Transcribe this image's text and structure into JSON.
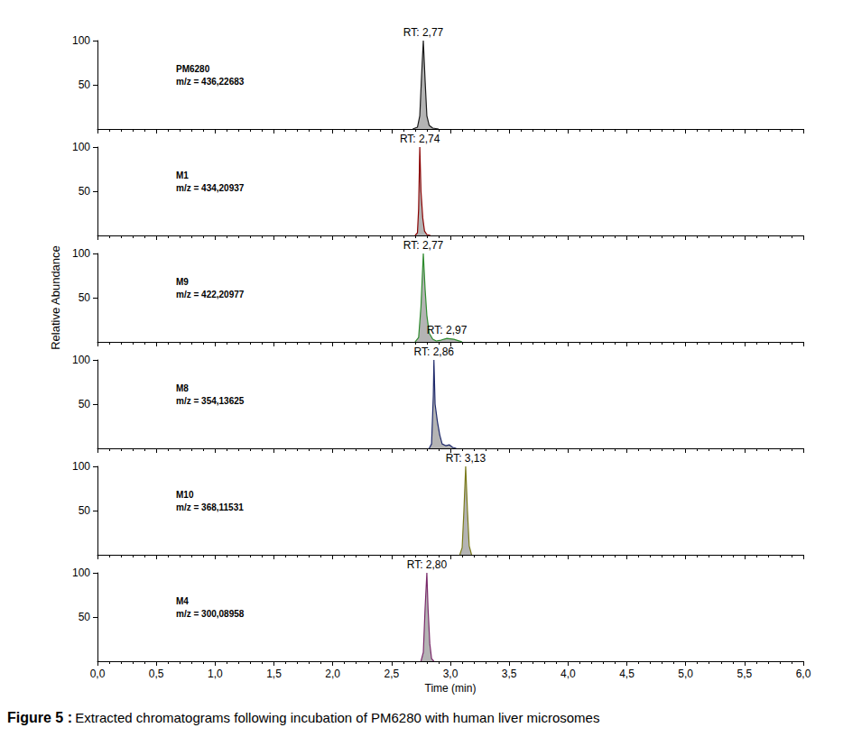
{
  "chart_data": [
    {
      "type": "line",
      "title": "PM6280",
      "subtitle": "m/z = 436,22683",
      "color": "#1a1a1a",
      "x": [
        2.68,
        2.72,
        2.74,
        2.755,
        2.77,
        2.785,
        2.8,
        2.82,
        2.85,
        2.9
      ],
      "values": [
        0,
        2,
        15,
        60,
        100,
        55,
        15,
        4,
        1,
        0
      ],
      "annotations": [
        {
          "text": "RT: 2,77",
          "x": 2.77,
          "y": 100
        }
      ],
      "xlim": [
        0,
        6
      ],
      "ylim": [
        0,
        100
      ],
      "yticks": [
        50,
        100
      ],
      "tick_labels": "y",
      "xticks": [
        {
          "value": 0,
          "label": "0,0"
        },
        {
          "value": 0.5,
          "label": "0,5"
        },
        {
          "value": 1,
          "label": "1,0"
        },
        {
          "value": 1.5,
          "label": "1,5"
        },
        {
          "value": 2,
          "label": "2,0"
        },
        {
          "value": 2.5,
          "label": "2,5"
        },
        {
          "value": 3,
          "label": "3,0"
        },
        {
          "value": 3.5,
          "label": "3,5"
        },
        {
          "value": 4,
          "label": "4,0"
        },
        {
          "value": 4.5,
          "label": "4,5"
        },
        {
          "value": 5,
          "label": "5,0"
        },
        {
          "value": 5.5,
          "label": "5,5"
        },
        {
          "value": 6,
          "label": "6,0"
        }
      ]
    },
    {
      "type": "line",
      "title": "M1",
      "subtitle": "m/z = 434,20937",
      "color": "#8b0000",
      "x": [
        2.7,
        2.72,
        2.73,
        2.74,
        2.75,
        2.765,
        2.78,
        2.8,
        2.83
      ],
      "values": [
        0,
        3,
        30,
        100,
        50,
        20,
        5,
        1,
        0
      ],
      "annotations": [
        {
          "text": "RT: 2,74",
          "x": 2.74,
          "y": 100
        }
      ],
      "xlim": [
        0,
        6
      ],
      "ylim": [
        0,
        100
      ],
      "yticks": [
        50,
        100
      ],
      "tick_labels": "y",
      "xticks": [
        {
          "value": 0,
          "label": "0,0"
        },
        {
          "value": 0.5,
          "label": "0,5"
        },
        {
          "value": 1,
          "label": "1,0"
        },
        {
          "value": 1.5,
          "label": "1,5"
        },
        {
          "value": 2,
          "label": "2,0"
        },
        {
          "value": 2.5,
          "label": "2,5"
        },
        {
          "value": 3,
          "label": "3,0"
        },
        {
          "value": 3.5,
          "label": "3,5"
        },
        {
          "value": 4,
          "label": "4,0"
        },
        {
          "value": 4.5,
          "label": "4,5"
        },
        {
          "value": 5,
          "label": "5,0"
        },
        {
          "value": 5.5,
          "label": "5,5"
        },
        {
          "value": 6,
          "label": "6,0"
        }
      ]
    },
    {
      "type": "line",
      "title": "M9",
      "subtitle": "m/z = 422,20977",
      "color": "#2e8b2e",
      "x": [
        2.7,
        2.73,
        2.75,
        2.77,
        2.785,
        2.8,
        2.82,
        2.85,
        2.88,
        2.92,
        2.97,
        3.03,
        3.1
      ],
      "values": [
        0,
        5,
        40,
        100,
        60,
        30,
        10,
        3,
        1,
        2,
        4,
        3,
        0
      ],
      "annotations": [
        {
          "text": "RT: 2,77",
          "x": 2.77,
          "y": 100
        },
        {
          "text": "RT: 2,97",
          "x": 2.97,
          "y": 4
        }
      ],
      "xlim": [
        0,
        6
      ],
      "ylim": [
        0,
        100
      ],
      "yticks": [
        50,
        100
      ],
      "tick_labels": "y",
      "xticks": [
        {
          "value": 0,
          "label": "0,0"
        },
        {
          "value": 0.5,
          "label": "0,5"
        },
        {
          "value": 1,
          "label": "1,0"
        },
        {
          "value": 1.5,
          "label": "1,5"
        },
        {
          "value": 2,
          "label": "2,0"
        },
        {
          "value": 2.5,
          "label": "2,5"
        },
        {
          "value": 3,
          "label": "3,0"
        },
        {
          "value": 3.5,
          "label": "3,5"
        },
        {
          "value": 4,
          "label": "4,0"
        },
        {
          "value": 4.5,
          "label": "4,5"
        },
        {
          "value": 5,
          "label": "5,0"
        },
        {
          "value": 5.5,
          "label": "5,5"
        },
        {
          "value": 6,
          "label": "6,0"
        }
      ]
    },
    {
      "type": "line",
      "title": "M8",
      "subtitle": "m/z = 354,13625",
      "color": "#1f2a6b",
      "x": [
        2.82,
        2.84,
        2.855,
        2.86,
        2.87,
        2.89,
        2.91,
        2.93,
        2.96,
        2.99,
        3.02,
        3.05
      ],
      "values": [
        0,
        5,
        60,
        100,
        50,
        30,
        15,
        5,
        3,
        4,
        1,
        0
      ],
      "annotations": [
        {
          "text": "RT: 2,86",
          "x": 2.86,
          "y": 100
        }
      ],
      "xlim": [
        0,
        6
      ],
      "ylim": [
        0,
        100
      ],
      "yticks": [
        50,
        100
      ],
      "tick_labels": "y",
      "xticks": [
        {
          "value": 0,
          "label": "0,0"
        },
        {
          "value": 0.5,
          "label": "0,5"
        },
        {
          "value": 1,
          "label": "1,0"
        },
        {
          "value": 1.5,
          "label": "1,5"
        },
        {
          "value": 2,
          "label": "2,0"
        },
        {
          "value": 2.5,
          "label": "2,5"
        },
        {
          "value": 3,
          "label": "3,0"
        },
        {
          "value": 3.5,
          "label": "3,5"
        },
        {
          "value": 4,
          "label": "4,0"
        },
        {
          "value": 4.5,
          "label": "4,5"
        },
        {
          "value": 5,
          "label": "5,0"
        },
        {
          "value": 5.5,
          "label": "5,5"
        },
        {
          "value": 6,
          "label": "6,0"
        }
      ]
    },
    {
      "type": "line",
      "title": "M10",
      "subtitle": "m/z = 368,11531",
      "color": "#7a7a1a",
      "x": [
        3.08,
        3.1,
        3.115,
        3.13,
        3.145,
        3.16,
        3.18
      ],
      "values": [
        0,
        8,
        50,
        100,
        50,
        10,
        0
      ],
      "annotations": [
        {
          "text": "RT: 3,13",
          "x": 3.13,
          "y": 100
        }
      ],
      "xlim": [
        0,
        6
      ],
      "ylim": [
        0,
        100
      ],
      "yticks": [
        50,
        100
      ],
      "tick_labels": "y",
      "xticks": [
        {
          "value": 0,
          "label": "0,0"
        },
        {
          "value": 0.5,
          "label": "0,5"
        },
        {
          "value": 1,
          "label": "1,0"
        },
        {
          "value": 1.5,
          "label": "1,5"
        },
        {
          "value": 2,
          "label": "2,0"
        },
        {
          "value": 2.5,
          "label": "2,5"
        },
        {
          "value": 3,
          "label": "3,0"
        },
        {
          "value": 3.5,
          "label": "3,5"
        },
        {
          "value": 4,
          "label": "4,0"
        },
        {
          "value": 4.5,
          "label": "4,5"
        },
        {
          "value": 5,
          "label": "5,0"
        },
        {
          "value": 5.5,
          "label": "5,5"
        },
        {
          "value": 6,
          "label": "6,0"
        }
      ]
    },
    {
      "type": "line",
      "title": "M4",
      "subtitle": "m/z = 300,08958",
      "color": "#7a2a6a",
      "x": [
        2.75,
        2.77,
        2.785,
        2.8,
        2.81,
        2.825,
        2.84,
        2.86
      ],
      "values": [
        0,
        10,
        60,
        100,
        60,
        20,
        3,
        0
      ],
      "annotations": [
        {
          "text": "RT: 2,80",
          "x": 2.8,
          "y": 100
        }
      ],
      "xlim": [
        0,
        6
      ],
      "ylim": [
        0,
        100
      ],
      "yticks": [
        50,
        100
      ],
      "xticks": [
        {
          "value": 0,
          "label": "0,0"
        },
        {
          "value": 0.5,
          "label": "0,5"
        },
        {
          "value": 1,
          "label": "1,0"
        },
        {
          "value": 1.5,
          "label": "1,5"
        },
        {
          "value": 2,
          "label": "2,0"
        },
        {
          "value": 2.5,
          "label": "2,5"
        },
        {
          "value": 3,
          "label": "3,0"
        },
        {
          "value": 3.5,
          "label": "3,5"
        },
        {
          "value": 4,
          "label": "4,0"
        },
        {
          "value": 4.5,
          "label": "4,5"
        },
        {
          "value": 5,
          "label": "5,0"
        },
        {
          "value": 5.5,
          "label": "5,5"
        },
        {
          "value": 6,
          "label": "6,0"
        }
      ],
      "xlabel": "Time (min)"
    }
  ],
  "ylabel": "Relative Abundance",
  "caption": {
    "label": "Figure 5 :",
    "text": "Extracted chromatograms following incubation of PM6280 with human liver microsomes"
  }
}
